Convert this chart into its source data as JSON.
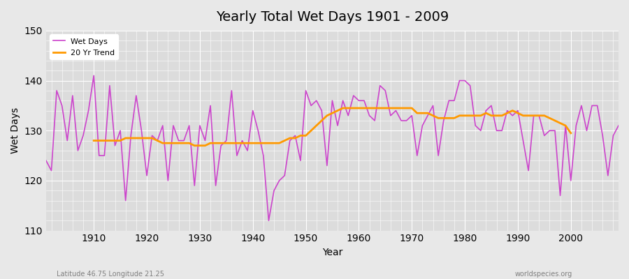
{
  "title": "Yearly Total Wet Days 1901 - 2009",
  "xlabel": "Year",
  "ylabel": "Wet Days",
  "subtitle_left": "Latitude 46.75 Longitude 21.25",
  "subtitle_right": "worldspecies.org",
  "ylim": [
    110,
    150
  ],
  "xlim": [
    1901,
    2009
  ],
  "wet_days_color": "#cc44cc",
  "trend_color": "#ff9900",
  "years": [
    1901,
    1902,
    1903,
    1904,
    1905,
    1906,
    1907,
    1908,
    1909,
    1910,
    1911,
    1912,
    1913,
    1914,
    1915,
    1916,
    1917,
    1918,
    1919,
    1920,
    1921,
    1922,
    1923,
    1924,
    1925,
    1926,
    1927,
    1928,
    1929,
    1930,
    1931,
    1932,
    1933,
    1934,
    1935,
    1936,
    1937,
    1938,
    1939,
    1940,
    1941,
    1942,
    1943,
    1944,
    1945,
    1946,
    1947,
    1948,
    1949,
    1950,
    1951,
    1952,
    1953,
    1954,
    1955,
    1956,
    1957,
    1958,
    1959,
    1960,
    1961,
    1962,
    1963,
    1964,
    1965,
    1966,
    1967,
    1968,
    1969,
    1970,
    1971,
    1972,
    1973,
    1974,
    1975,
    1976,
    1977,
    1978,
    1979,
    1980,
    1981,
    1982,
    1983,
    1984,
    1985,
    1986,
    1987,
    1988,
    1989,
    1990,
    1991,
    1992,
    1993,
    1994,
    1995,
    1996,
    1997,
    1998,
    1999,
    2000,
    2001,
    2002,
    2003,
    2004,
    2005,
    2006,
    2007,
    2008,
    2009
  ],
  "wet_days": [
    124,
    122,
    138,
    135,
    128,
    137,
    126,
    129,
    134,
    141,
    125,
    125,
    139,
    127,
    130,
    116,
    129,
    137,
    130,
    121,
    129,
    128,
    131,
    120,
    131,
    128,
    128,
    131,
    119,
    131,
    128,
    135,
    119,
    127,
    128,
    138,
    125,
    128,
    126,
    134,
    130,
    125,
    112,
    118,
    120,
    121,
    128,
    129,
    124,
    138,
    135,
    136,
    134,
    123,
    136,
    131,
    136,
    133,
    137,
    136,
    136,
    133,
    132,
    139,
    138,
    133,
    134,
    132,
    132,
    133,
    125,
    131,
    133,
    135,
    125,
    132,
    136,
    136,
    140,
    140,
    139,
    131,
    130,
    134,
    135,
    130,
    130,
    134,
    133,
    134,
    128,
    122,
    133,
    133,
    129,
    130,
    130,
    117,
    131,
    120,
    131,
    135,
    130,
    135,
    135,
    129,
    121,
    129,
    131
  ],
  "trend_years": [
    1910,
    1911,
    1912,
    1913,
    1914,
    1915,
    1916,
    1917,
    1918,
    1919,
    1920,
    1921,
    1922,
    1923,
    1924,
    1925,
    1926,
    1927,
    1928,
    1929,
    1930,
    1931,
    1932,
    1933,
    1934,
    1935,
    1936,
    1937,
    1938,
    1939,
    1940,
    1941,
    1942,
    1943,
    1944,
    1945,
    1946,
    1947,
    1948,
    1949,
    1950,
    1951,
    1952,
    1953,
    1954,
    1955,
    1956,
    1957,
    1958,
    1959,
    1960,
    1961,
    1962,
    1963,
    1964,
    1965,
    1966,
    1967,
    1968,
    1969,
    1970,
    1971,
    1972,
    1973,
    1974,
    1975,
    1976,
    1977,
    1978,
    1979,
    1980,
    1981,
    1982,
    1983,
    1984,
    1985,
    1986,
    1987,
    1988,
    1989,
    1990,
    1991,
    1992,
    1993,
    1994,
    1995,
    1996,
    1997,
    1998,
    1999,
    2000
  ],
  "trend_values": [
    128.0,
    128.0,
    128.0,
    128.0,
    128.0,
    128.0,
    128.5,
    128.5,
    128.5,
    128.5,
    128.5,
    128.5,
    128.0,
    127.5,
    127.5,
    127.5,
    127.5,
    127.5,
    127.5,
    127.0,
    127.0,
    127.0,
    127.5,
    127.5,
    127.5,
    127.5,
    127.5,
    127.5,
    127.5,
    127.5,
    127.5,
    127.5,
    127.5,
    127.5,
    127.5,
    127.5,
    128.0,
    128.5,
    128.5,
    129.0,
    129.0,
    130.0,
    131.0,
    132.0,
    133.0,
    133.5,
    134.0,
    134.5,
    134.5,
    134.5,
    134.5,
    134.5,
    134.5,
    134.5,
    134.5,
    134.5,
    134.5,
    134.5,
    134.5,
    134.5,
    134.5,
    133.5,
    133.5,
    133.5,
    133.0,
    132.5,
    132.5,
    132.5,
    132.5,
    133.0,
    133.0,
    133.0,
    133.0,
    133.0,
    133.5,
    133.0,
    133.0,
    133.0,
    133.5,
    134.0,
    133.5,
    133.0,
    133.0,
    133.0,
    133.0,
    133.0,
    132.5,
    132.0,
    131.5,
    131.0,
    129.5
  ]
}
